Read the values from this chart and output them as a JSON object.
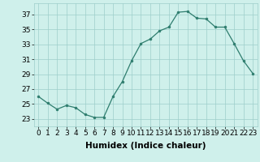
{
  "x": [
    0,
    1,
    2,
    3,
    4,
    5,
    6,
    7,
    8,
    9,
    10,
    11,
    12,
    13,
    14,
    15,
    16,
    17,
    18,
    19,
    20,
    21,
    22,
    23
  ],
  "y": [
    26,
    25.1,
    24.3,
    24.8,
    24.5,
    23.6,
    23.2,
    23.2,
    26.0,
    28.0,
    30.8,
    33.1,
    33.7,
    34.8,
    35.3,
    37.3,
    37.4,
    36.5,
    36.4,
    35.3,
    35.3,
    33.1,
    30.8,
    29.1
  ],
  "line_color": "#2e7d6e",
  "marker": "o",
  "marker_size": 2,
  "bg_color": "#cff0eb",
  "grid_color": "#9ececa",
  "xlabel": "Humidex (Indice chaleur)",
  "xlim": [
    -0.5,
    23.5
  ],
  "ylim": [
    22.0,
    38.5
  ],
  "yticks": [
    23,
    25,
    27,
    29,
    31,
    33,
    35,
    37
  ],
  "tick_fontsize": 6.5,
  "xlabel_fontsize": 7.5
}
